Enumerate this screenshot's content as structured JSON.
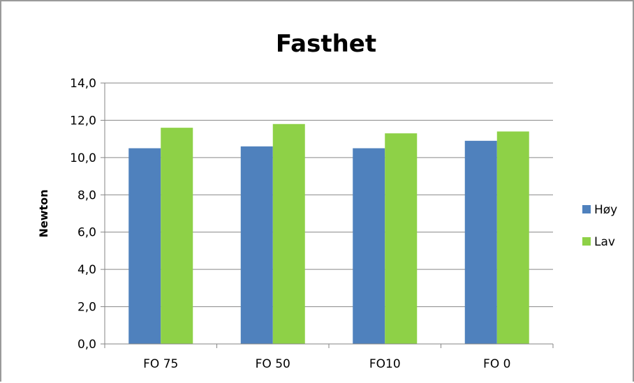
{
  "chart_data": {
    "type": "bar",
    "title": "Fasthet",
    "xlabel": "",
    "ylabel": "Newton",
    "categories": [
      "FO 75",
      "FO 50",
      "FO10",
      "FO 0"
    ],
    "series": [
      {
        "name": "Høy",
        "values": [
          10.5,
          10.6,
          10.5,
          10.9
        ],
        "color": "#4f81bd"
      },
      {
        "name": "Lav",
        "values": [
          11.6,
          11.8,
          11.3,
          11.4
        ],
        "color": "#8ed147"
      }
    ],
    "ylim": [
      0,
      14
    ],
    "yticks": [
      "0,0",
      "2,0",
      "4,0",
      "6,0",
      "8,0",
      "10,0",
      "12,0",
      "14,0"
    ],
    "grid": true,
    "legend": "right"
  }
}
